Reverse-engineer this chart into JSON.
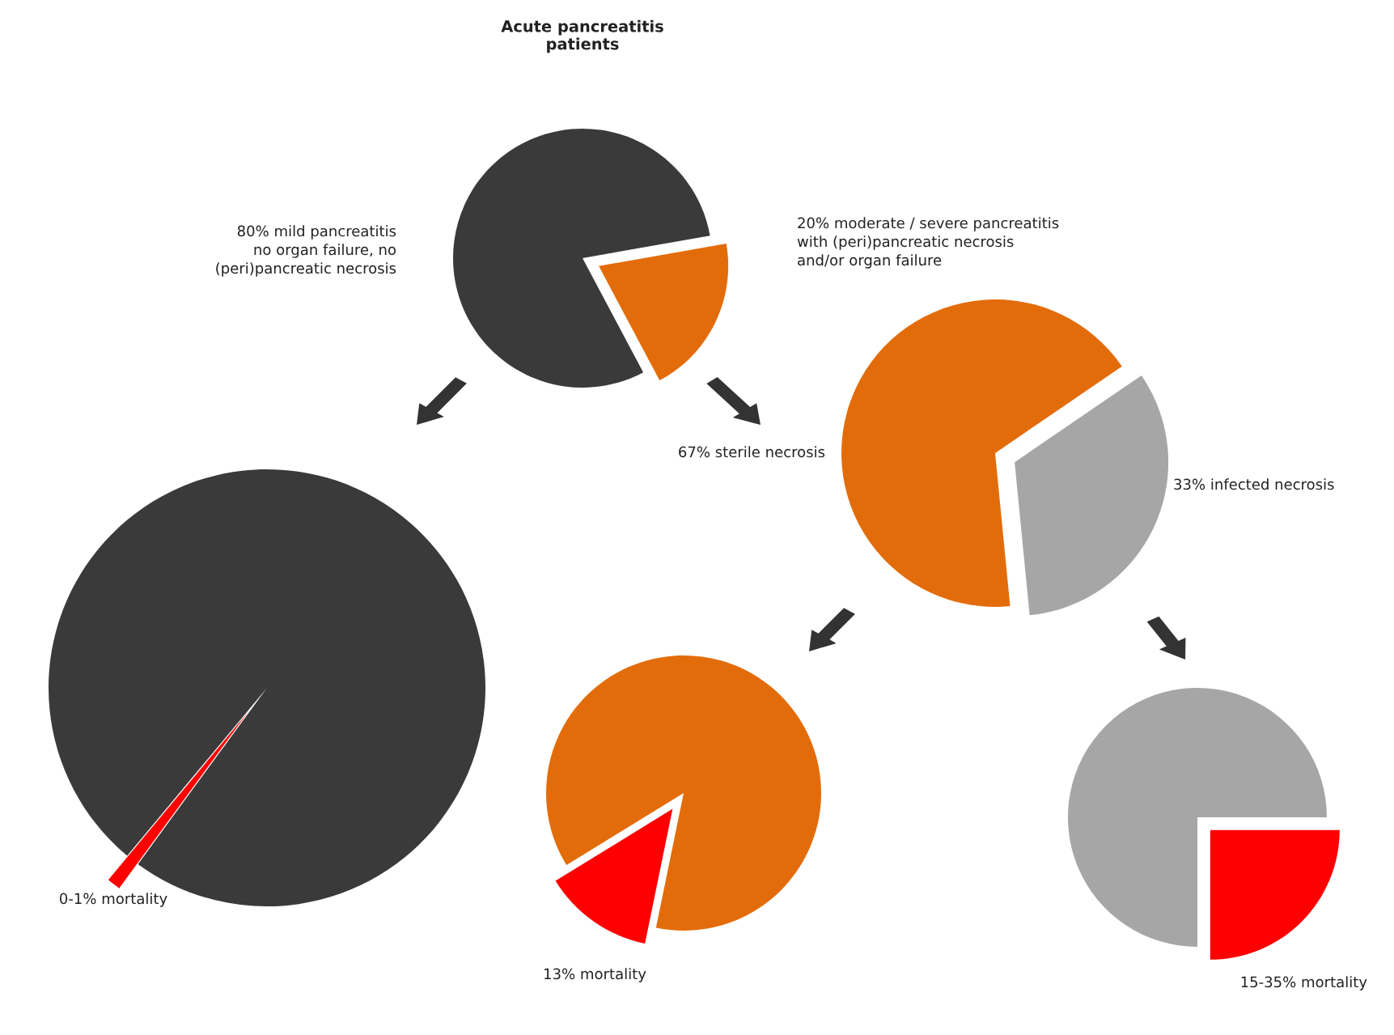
{
  "chart_data": [
    {
      "type": "pie",
      "title": "Acute pancreatitis\npatients",
      "categories": [
        "80% mild pancreatitis\nno organ failure, no\n(peri)pancreatic necrosis",
        "20% moderate / severe pancreatitis\nwith (peri)pancreatic necrosis\nand/or organ failure"
      ],
      "values": [
        80,
        20
      ],
      "colors": [
        "#3a3a3a",
        "#e36c0a"
      ]
    },
    {
      "type": "pie",
      "categories": [
        null,
        "0-1% mortality"
      ],
      "values": [
        99,
        1
      ],
      "colors": [
        "#3a3a3a",
        "#ff0000"
      ]
    },
    {
      "type": "pie",
      "categories": [
        "67% sterile necrosis",
        "33% infected necrosis"
      ],
      "values": [
        67,
        33
      ],
      "colors": [
        "#e36c0a",
        "#a6a6a6"
      ]
    },
    {
      "type": "pie",
      "categories": [
        null,
        "13% mortality"
      ],
      "values": [
        87,
        13
      ],
      "colors": [
        "#e36c0a",
        "#ff0000"
      ]
    },
    {
      "type": "pie",
      "categories": [
        null,
        "15-35% mortality"
      ],
      "values": [
        75,
        25
      ],
      "colors": [
        "#a6a6a6",
        "#ff0000"
      ]
    }
  ]
}
